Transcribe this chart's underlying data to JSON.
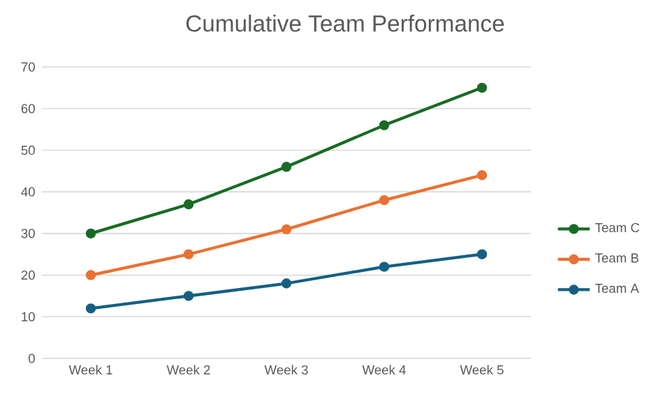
{
  "chart_data": {
    "type": "line",
    "title": "Cumulative Team Performance",
    "categories": [
      "Week 1",
      "Week 2",
      "Week 3",
      "Week 4",
      "Week 5"
    ],
    "series": [
      {
        "name": "Team A",
        "color": "#156082",
        "values": [
          12,
          15,
          18,
          22,
          25
        ]
      },
      {
        "name": "Team B",
        "color": "#e97132",
        "values": [
          20,
          25,
          31,
          38,
          44
        ]
      },
      {
        "name": "Team C",
        "color": "#196b24",
        "values": [
          30,
          37,
          46,
          56,
          65
        ]
      }
    ],
    "ylim": [
      0,
      70
    ],
    "yticks": [
      0,
      10,
      20,
      30,
      40,
      50,
      60,
      70
    ],
    "grid": "y",
    "legend": "right",
    "marker": "circle",
    "line_style": "solid"
  }
}
